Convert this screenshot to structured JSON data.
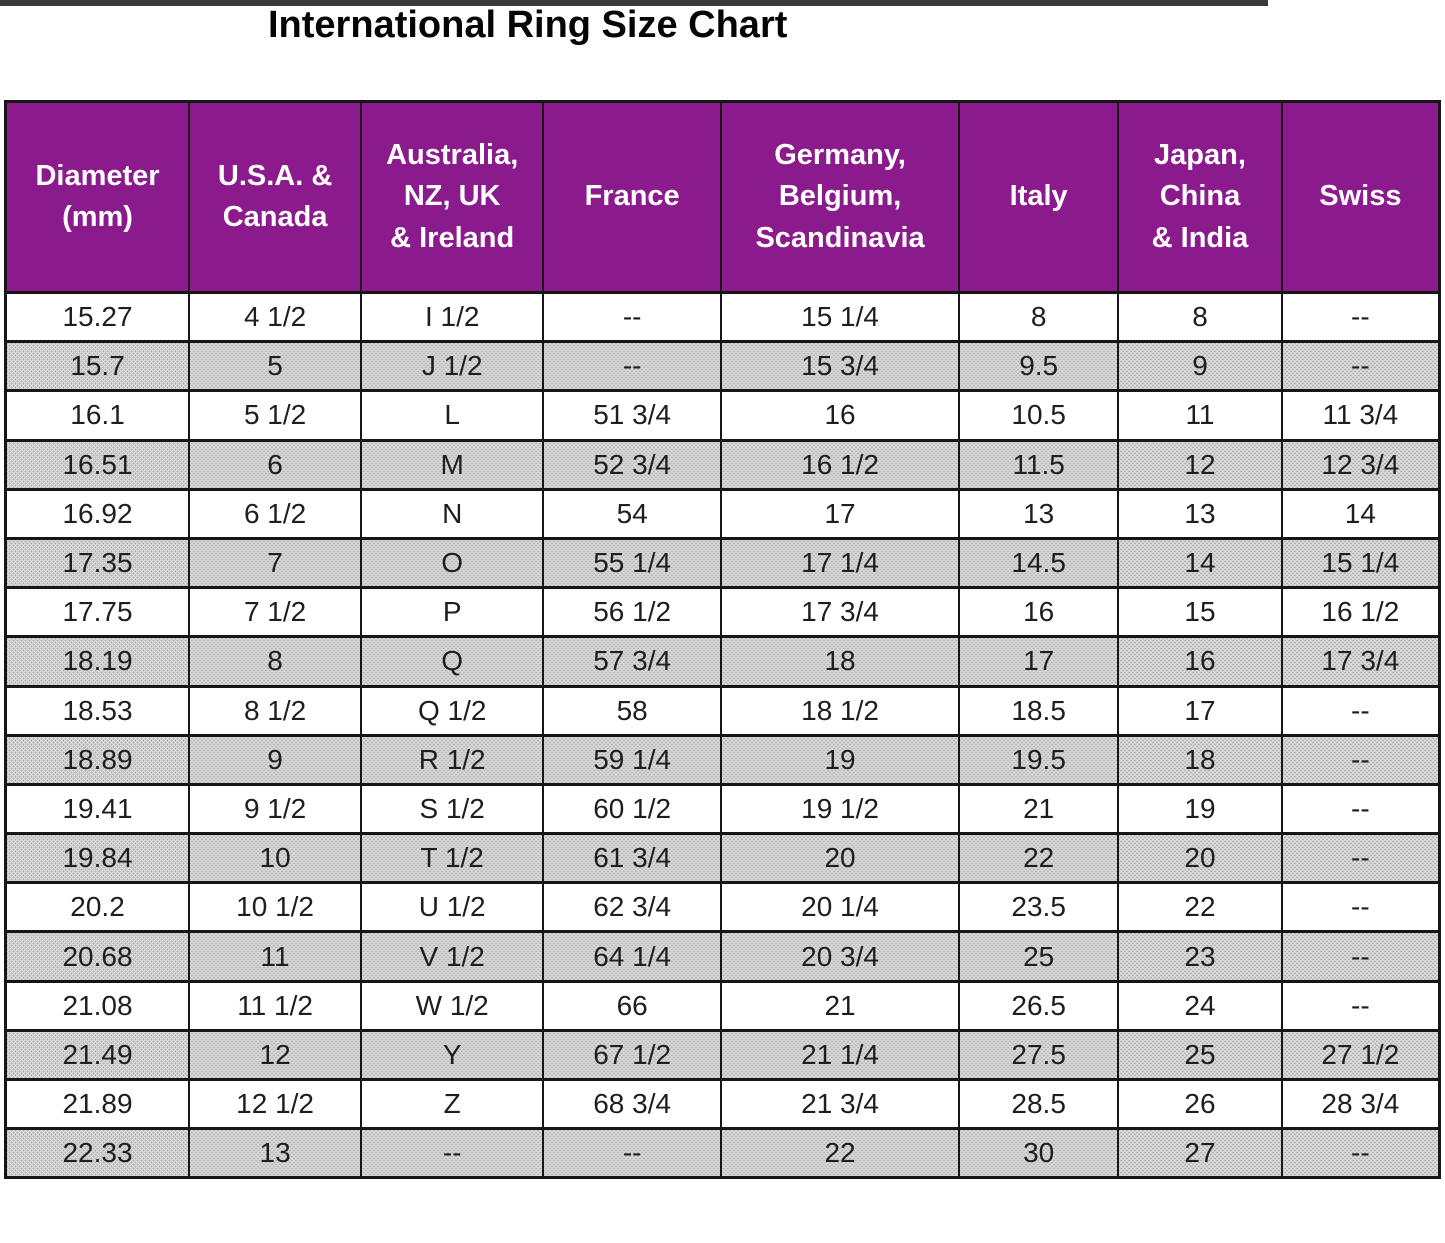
{
  "title": "International Ring Size Chart",
  "colors": {
    "header_bg": "#8B1A8C",
    "header_text": "#FFFFFF",
    "row_alt_bg": "#C9C9C9",
    "border": "#161616",
    "title_color": "#050505"
  },
  "chart_data": {
    "type": "table",
    "title": "International Ring Size Chart",
    "columns": [
      "Diameter\n(mm)",
      "U.S.A. &\nCanada",
      "Australia,\nNZ, UK\n& Ireland",
      "France",
      "Germany,\nBelgium,\nScandinavia",
      "Italy",
      "Japan,\nChina\n& India",
      "Swiss"
    ],
    "column_keys": [
      "diameter-mm",
      "usa-canada",
      "australia-nz-uk-ireland",
      "france",
      "germany-belgium-scandinavia",
      "italy",
      "japan-china-india",
      "swiss"
    ],
    "rows": [
      [
        "15.27",
        "4 1/2",
        "I 1/2",
        "--",
        "15 1/4",
        "8",
        "8",
        "--"
      ],
      [
        "15.7",
        "5",
        "J 1/2",
        "--",
        "15 3/4",
        "9.5",
        "9",
        "--"
      ],
      [
        "16.1",
        "5 1/2",
        "L",
        "51 3/4",
        "16",
        "10.5",
        "11",
        "11 3/4"
      ],
      [
        "16.51",
        "6",
        "M",
        "52 3/4",
        "16 1/2",
        "11.5",
        "12",
        "12 3/4"
      ],
      [
        "16.92",
        "6 1/2",
        "N",
        "54",
        "17",
        "13",
        "13",
        "14"
      ],
      [
        "17.35",
        "7",
        "O",
        "55 1/4",
        "17 1/4",
        "14.5",
        "14",
        "15 1/4"
      ],
      [
        "17.75",
        "7 1/2",
        "P",
        "56 1/2",
        "17 3/4",
        "16",
        "15",
        "16 1/2"
      ],
      [
        "18.19",
        "8",
        "Q",
        "57 3/4",
        "18",
        "17",
        "16",
        "17 3/4"
      ],
      [
        "18.53",
        "8 1/2",
        "Q 1/2",
        "58",
        "18 1/2",
        "18.5",
        "17",
        "--"
      ],
      [
        "18.89",
        "9",
        "R 1/2",
        "59 1/4",
        "19",
        "19.5",
        "18",
        "--"
      ],
      [
        "19.41",
        "9 1/2",
        "S 1/2",
        "60 1/2",
        "19 1/2",
        "21",
        "19",
        "--"
      ],
      [
        "19.84",
        "10",
        "T 1/2",
        "61 3/4",
        "20",
        "22",
        "20",
        "--"
      ],
      [
        "20.2",
        "10 1/2",
        "U 1/2",
        "62 3/4",
        "20 1/4",
        "23.5",
        "22",
        "--"
      ],
      [
        "20.68",
        "11",
        "V 1/2",
        "64 1/4",
        "20 3/4",
        "25",
        "23",
        "--"
      ],
      [
        "21.08",
        "11 1/2",
        "W 1/2",
        "66",
        "21",
        "26.5",
        "24",
        "--"
      ],
      [
        "21.49",
        "12",
        "Y",
        "67 1/2",
        "21 1/4",
        "27.5",
        "25",
        "27 1/2"
      ],
      [
        "21.89",
        "12 1/2",
        "Z",
        "68 3/4",
        "21 3/4",
        "28.5",
        "26",
        "28 3/4"
      ],
      [
        "22.33",
        "13",
        "--",
        "--",
        "22",
        "30",
        "27",
        "--"
      ]
    ]
  }
}
